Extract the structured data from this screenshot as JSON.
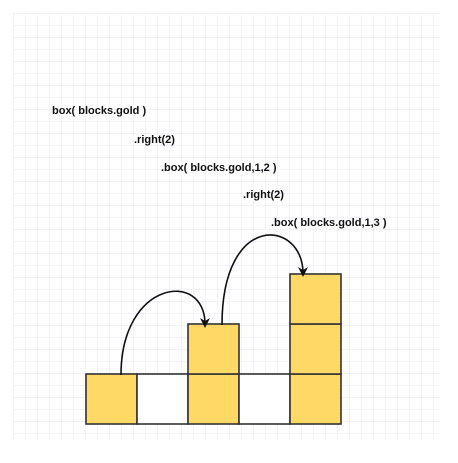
{
  "code_lines": [
    "box( blocks.gold )",
    ".right(2)",
    ".box( blocks.gold,1,2 )",
    ".right(2)",
    ".box( blocks.gold,1,3 )"
  ],
  "columns": [
    {
      "height": 1,
      "filled": true
    },
    {
      "height": 1,
      "filled": false
    },
    {
      "height": 2,
      "filled": true
    },
    {
      "height": 1,
      "filled": false
    },
    {
      "height": 3,
      "filled": true
    }
  ],
  "colors": {
    "gold_fill": "#FFD966",
    "empty_fill": "#FFFFFF",
    "block_stroke": "#333333",
    "grid_line": "#E8E6F4",
    "arrow": "#111111"
  },
  "grid": "on"
}
